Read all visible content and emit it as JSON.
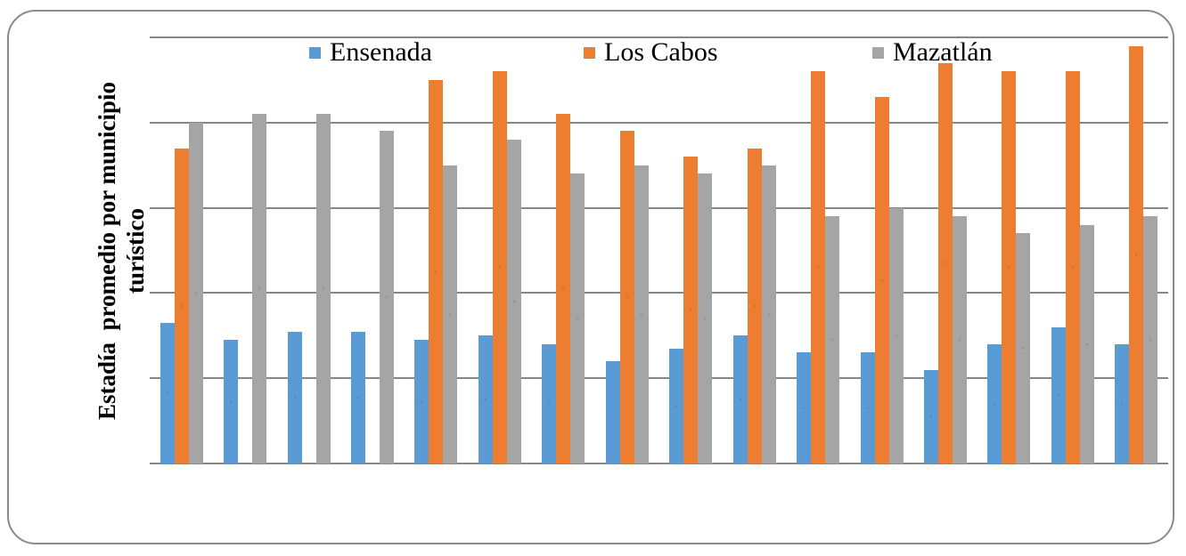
{
  "figure": {
    "background_color": "#ffffff",
    "border_color": "#8a8a8a",
    "gridline_color": "#878787"
  },
  "chart_data": {
    "type": "bar",
    "title": "",
    "xlabel": "",
    "ylabel": "Estadía  promedio por municipio\nturístico",
    "x_tick_labels": [],
    "y_tick_labels": [],
    "axis_numbers_visible": false,
    "ylim": [
      0,
      5
    ],
    "gridline_interval": 1,
    "grid": true,
    "legend_position": "top",
    "n_groups": 16,
    "series": [
      {
        "name": "Ensenada",
        "color": "#5B9BD5",
        "values": [
          1.65,
          1.45,
          1.55,
          1.55,
          1.45,
          1.5,
          1.4,
          1.2,
          1.35,
          1.5,
          1.3,
          1.3,
          1.1,
          1.4,
          1.6,
          1.4
        ]
      },
      {
        "name": "Los Cabos",
        "color": "#ED7D31",
        "values": [
          3.7,
          0,
          0,
          0,
          4.5,
          4.6,
          4.1,
          3.9,
          3.6,
          3.7,
          4.6,
          4.3,
          4.7,
          4.6,
          4.6,
          4.9
        ]
      },
      {
        "name": "Mazatlán",
        "color": "#A5A5A5",
        "values": [
          4.0,
          4.1,
          4.1,
          3.9,
          3.5,
          3.8,
          3.4,
          3.5,
          3.4,
          3.5,
          2.9,
          3.0,
          2.9,
          2.7,
          2.8,
          2.9
        ]
      }
    ]
  }
}
